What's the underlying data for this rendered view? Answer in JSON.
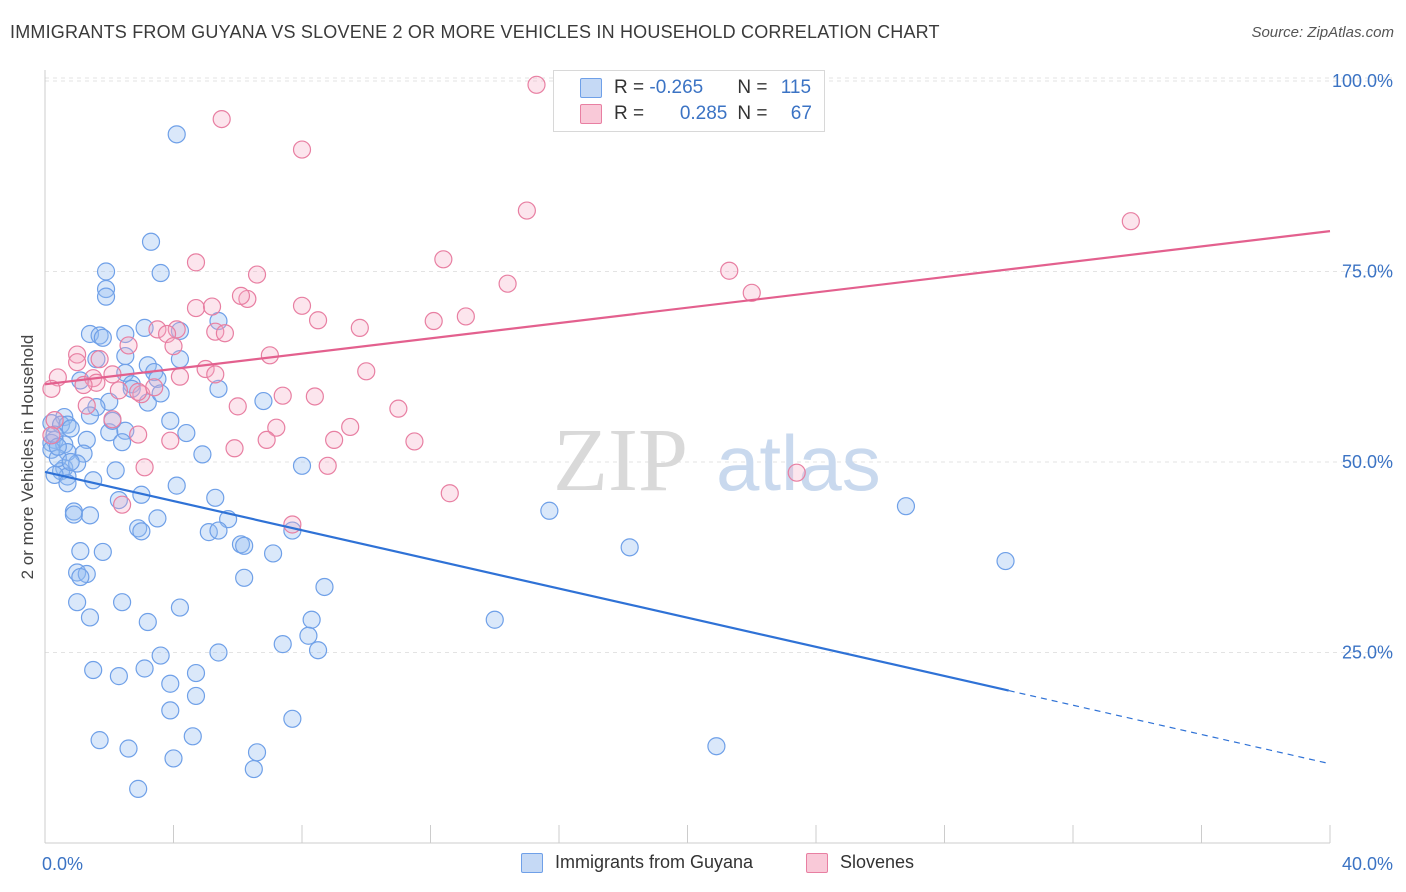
{
  "title": "IMMIGRANTS FROM GUYANA VS SLOVENE 2 OR MORE VEHICLES IN HOUSEHOLD CORRELATION CHART",
  "source": "Source: ZipAtlas.com",
  "watermark": {
    "zip": "ZIP",
    "atlas": "atlas"
  },
  "legend_box": {
    "rows": [
      {
        "r_label": "R = ",
        "r_value": "-0.265",
        "n_label": "N = ",
        "n_value": "115",
        "color": "#6fa0e8",
        "fill": "#c5d9f5"
      },
      {
        "r_label": "R = ",
        "r_value": "0.285",
        "n_label": "N = ",
        "n_value": "67",
        "color": "#e87fa2",
        "fill": "#f9c9d8"
      }
    ]
  },
  "bottom_legend": [
    {
      "label": "Immigrants from Guyana",
      "color": "#6fa0e8",
      "fill": "#c5d9f5"
    },
    {
      "label": "Slovenes",
      "color": "#e87fa2",
      "fill": "#f9c9d8"
    }
  ],
  "chart_data": {
    "type": "scatter",
    "ylabel": "2 or more Vehicles in Household",
    "xlim": [
      0,
      40
    ],
    "ylim": [
      0,
      105
    ],
    "x_tick_labels": [
      {
        "value": 0,
        "label": "0.0%"
      },
      {
        "value": 40,
        "label": "40.0%"
      }
    ],
    "y_tick_labels": [
      {
        "value": 25,
        "label": "25.0%"
      },
      {
        "value": 50,
        "label": "50.0%"
      },
      {
        "value": 75,
        "label": "75.0%"
      },
      {
        "value": 100,
        "label": "100.0%"
      }
    ],
    "grid": true,
    "series": [
      {
        "name": "Immigrants from Guyana",
        "stroke": "#6fa0e8",
        "fill": "rgba(150,190,240,0.35)",
        "trend": {
          "x0": 0,
          "y0": 48.7,
          "x1": 30,
          "y1": 20.0,
          "dash_to": 40,
          "dash_y": 10.4,
          "color": "#2f72d6"
        },
        "points": [
          [
            4.1,
            93.0
          ],
          [
            3.3,
            78.9
          ],
          [
            1.9,
            75.0
          ],
          [
            3.6,
            74.8
          ],
          [
            1.9,
            72.7
          ],
          [
            1.9,
            71.7
          ],
          [
            5.4,
            68.5
          ],
          [
            4.2,
            67.2
          ],
          [
            3.1,
            67.6
          ],
          [
            1.4,
            66.8
          ],
          [
            1.7,
            66.6
          ],
          [
            1.8,
            66.3
          ],
          [
            2.5,
            66.8
          ],
          [
            1.6,
            63.5
          ],
          [
            2.5,
            63.9
          ],
          [
            3.2,
            62.7
          ],
          [
            3.4,
            61.8
          ],
          [
            2.5,
            61.7
          ],
          [
            1.1,
            60.7
          ],
          [
            2.7,
            60.2
          ],
          [
            5.4,
            59.6
          ],
          [
            6.8,
            58.0
          ],
          [
            3.2,
            57.8
          ],
          [
            2.0,
            57.9
          ],
          [
            1.6,
            57.2
          ],
          [
            0.6,
            55.9
          ],
          [
            0.2,
            55.1
          ],
          [
            0.5,
            54.9
          ],
          [
            0.7,
            54.9
          ],
          [
            3.9,
            55.4
          ],
          [
            2.5,
            54.1
          ],
          [
            2.0,
            53.9
          ],
          [
            4.4,
            53.8
          ],
          [
            0.3,
            52.9
          ],
          [
            0.2,
            52.5
          ],
          [
            1.3,
            52.9
          ],
          [
            2.4,
            52.6
          ],
          [
            0.6,
            52.3
          ],
          [
            0.7,
            51.3
          ],
          [
            0.2,
            51.6
          ],
          [
            1.2,
            51.1
          ],
          [
            4.9,
            51.0
          ],
          [
            8.0,
            49.5
          ],
          [
            0.6,
            49.2
          ],
          [
            0.5,
            48.8
          ],
          [
            2.2,
            48.9
          ],
          [
            0.7,
            48.1
          ],
          [
            0.3,
            48.3
          ],
          [
            1.5,
            47.6
          ],
          [
            0.7,
            47.2
          ],
          [
            4.1,
            46.9
          ],
          [
            5.3,
            45.3
          ],
          [
            3.0,
            45.7
          ],
          [
            2.3,
            45.0
          ],
          [
            15.7,
            43.6
          ],
          [
            0.9,
            43.5
          ],
          [
            0.9,
            43.1
          ],
          [
            1.4,
            43.0
          ],
          [
            3.5,
            42.6
          ],
          [
            5.7,
            42.5
          ],
          [
            2.9,
            41.3
          ],
          [
            3.0,
            40.9
          ],
          [
            5.1,
            40.8
          ],
          [
            5.4,
            41.0
          ],
          [
            7.7,
            41.0
          ],
          [
            6.1,
            39.2
          ],
          [
            6.2,
            39.0
          ],
          [
            18.2,
            38.8
          ],
          [
            1.1,
            38.3
          ],
          [
            1.8,
            38.2
          ],
          [
            7.1,
            38.0
          ],
          [
            1.0,
            35.5
          ],
          [
            1.3,
            35.3
          ],
          [
            1.1,
            34.9
          ],
          [
            6.2,
            34.8
          ],
          [
            8.7,
            33.6
          ],
          [
            1.0,
            31.6
          ],
          [
            2.4,
            31.6
          ],
          [
            4.2,
            30.9
          ],
          [
            1.4,
            29.6
          ],
          [
            8.3,
            29.3
          ],
          [
            14.0,
            29.3
          ],
          [
            3.2,
            29.0
          ],
          [
            8.2,
            27.2
          ],
          [
            7.4,
            26.1
          ],
          [
            8.5,
            25.3
          ],
          [
            5.4,
            25.0
          ],
          [
            3.6,
            24.6
          ],
          [
            1.5,
            22.7
          ],
          [
            3.1,
            22.9
          ],
          [
            4.7,
            22.3
          ],
          [
            2.3,
            21.9
          ],
          [
            3.9,
            20.9
          ],
          [
            4.7,
            19.3
          ],
          [
            3.9,
            17.4
          ],
          [
            7.7,
            16.3
          ],
          [
            1.7,
            13.5
          ],
          [
            2.6,
            12.4
          ],
          [
            4.6,
            14.0
          ],
          [
            6.6,
            11.9
          ],
          [
            4.0,
            11.1
          ],
          [
            20.9,
            12.7
          ],
          [
            6.5,
            9.7
          ],
          [
            2.9,
            7.1
          ],
          [
            26.8,
            44.2
          ],
          [
            29.9,
            37.0
          ],
          [
            0.3,
            53.6
          ],
          [
            0.4,
            50.5
          ],
          [
            1.0,
            49.8
          ],
          [
            0.8,
            54.4
          ],
          [
            1.4,
            56.1
          ],
          [
            2.7,
            59.6
          ],
          [
            3.5,
            60.9
          ],
          [
            4.2,
            63.5
          ],
          [
            0.8,
            50.0
          ],
          [
            0.4,
            52.0
          ],
          [
            2.1,
            55.4
          ],
          [
            3.6,
            59.0
          ]
        ]
      },
      {
        "name": "Slovenes",
        "stroke": "#e87fa2",
        "fill": "rgba(245,170,195,0.3)",
        "trend": {
          "x0": 0,
          "y0": 60.2,
          "x1": 40,
          "y1": 80.3,
          "color": "#e3608e"
        },
        "points": [
          [
            15.3,
            99.5
          ],
          [
            5.5,
            95.0
          ],
          [
            8.0,
            91.0
          ],
          [
            15.0,
            83.0
          ],
          [
            33.8,
            81.6
          ],
          [
            4.7,
            76.2
          ],
          [
            12.4,
            76.6
          ],
          [
            6.6,
            74.6
          ],
          [
            21.3,
            75.1
          ],
          [
            14.4,
            73.4
          ],
          [
            22.0,
            72.2
          ],
          [
            6.3,
            71.4
          ],
          [
            6.1,
            71.8
          ],
          [
            8.0,
            70.5
          ],
          [
            4.7,
            70.2
          ],
          [
            5.2,
            70.4
          ],
          [
            8.5,
            68.6
          ],
          [
            12.1,
            68.5
          ],
          [
            13.1,
            69.1
          ],
          [
            9.8,
            67.6
          ],
          [
            5.3,
            67.1
          ],
          [
            5.6,
            66.9
          ],
          [
            4.1,
            67.4
          ],
          [
            3.5,
            67.4
          ],
          [
            3.8,
            66.8
          ],
          [
            4.0,
            65.2
          ],
          [
            2.6,
            65.3
          ],
          [
            1.0,
            64.1
          ],
          [
            1.7,
            63.5
          ],
          [
            1.0,
            63.1
          ],
          [
            7.0,
            64.0
          ],
          [
            10.0,
            61.9
          ],
          [
            5.0,
            62.2
          ],
          [
            5.3,
            61.5
          ],
          [
            0.4,
            61.1
          ],
          [
            4.2,
            61.2
          ],
          [
            2.1,
            61.5
          ],
          [
            1.5,
            61.0
          ],
          [
            1.6,
            60.4
          ],
          [
            1.2,
            60.1
          ],
          [
            0.2,
            59.6
          ],
          [
            2.3,
            59.4
          ],
          [
            3.0,
            58.9
          ],
          [
            3.4,
            59.8
          ],
          [
            2.9,
            59.2
          ],
          [
            7.4,
            58.7
          ],
          [
            8.4,
            58.6
          ],
          [
            6.0,
            57.3
          ],
          [
            11.0,
            57.0
          ],
          [
            1.3,
            57.4
          ],
          [
            2.1,
            55.6
          ],
          [
            0.3,
            55.5
          ],
          [
            7.2,
            54.5
          ],
          [
            9.5,
            54.6
          ],
          [
            2.9,
            53.6
          ],
          [
            0.2,
            53.5
          ],
          [
            6.9,
            52.9
          ],
          [
            11.5,
            52.7
          ],
          [
            9.0,
            52.9
          ],
          [
            3.9,
            52.8
          ],
          [
            5.9,
            51.8
          ],
          [
            3.1,
            49.3
          ],
          [
            8.8,
            49.5
          ],
          [
            23.4,
            48.6
          ],
          [
            12.6,
            45.9
          ],
          [
            7.7,
            41.8
          ],
          [
            2.4,
            44.4
          ]
        ]
      }
    ]
  }
}
